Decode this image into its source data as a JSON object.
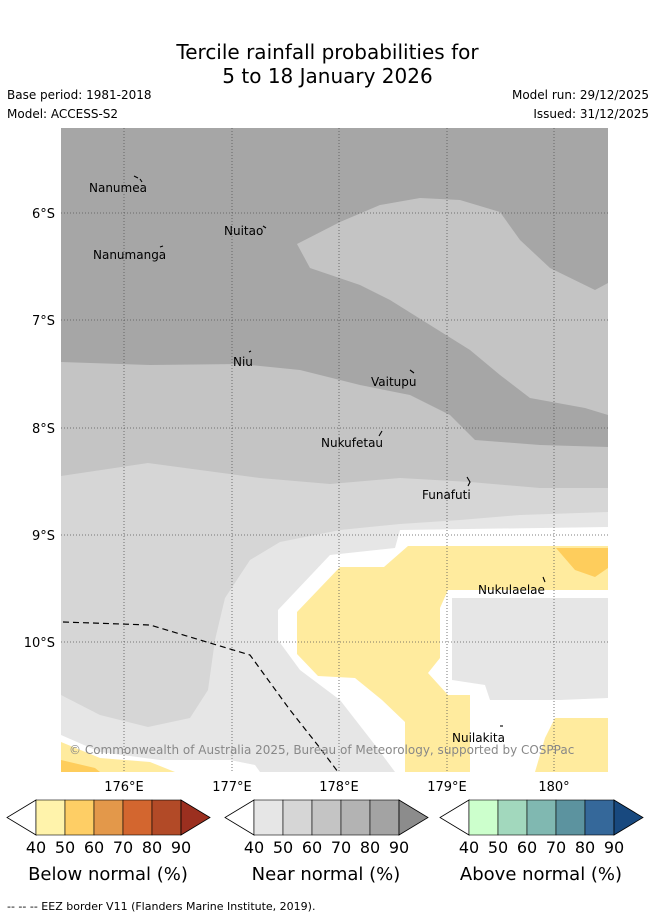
{
  "header": {
    "title_line1": "Tercile rainfall probabilities for",
    "title_line2": "5 to 18 January 2026",
    "base_period": "Base period: 1981-2018",
    "model": "Model: ACCESS-S2",
    "model_run": "Model run: 29/12/2025",
    "issued": "Issued: 31/12/2025"
  },
  "map": {
    "lat_ticks": [
      "6°S",
      "7°S",
      "8°S",
      "9°S",
      "10°S"
    ],
    "lon_ticks": [
      "176°E",
      "177°E",
      "178°E",
      "179°E",
      "180°"
    ],
    "places": [
      {
        "name": "Nanumea"
      },
      {
        "name": "Nuitao"
      },
      {
        "name": "Nanumanga"
      },
      {
        "name": "Niu"
      },
      {
        "name": "Vaitupu"
      },
      {
        "name": "Nukufetau"
      },
      {
        "name": "Funafuti"
      },
      {
        "name": "Nukulaelae"
      },
      {
        "name": "Nuilakita"
      }
    ],
    "copyright": "© Commonwealth of Australia 2025, Bureau of Meteorology, supported by COSPPac",
    "colors": {
      "near_90": "#a6a6a6",
      "near_70": "#c4c4c4",
      "near_60": "#d6d6d6",
      "near_50": "#e6e6e6",
      "below_50": "#ffeb9e",
      "below_60": "#fecd5c",
      "white": "#ffffff"
    }
  },
  "colorbars": [
    {
      "title": "Below normal (%)",
      "ticks": [
        "40",
        "50",
        "60",
        "70",
        "80",
        "90"
      ],
      "colors": [
        "#fff3ab",
        "#fece65",
        "#e3984a",
        "#d3662f",
        "#b24a27",
        "#9b2f1f"
      ]
    },
    {
      "title": "Near normal (%)",
      "ticks": [
        "40",
        "50",
        "60",
        "70",
        "80",
        "90"
      ],
      "colors": [
        "#e6e6e6",
        "#d6d6d6",
        "#c4c4c4",
        "#b3b3b3",
        "#a3a3a3",
        "#8c8c8c"
      ]
    },
    {
      "title": "Above normal (%)",
      "ticks": [
        "40",
        "50",
        "60",
        "70",
        "80",
        "90"
      ],
      "colors": [
        "#ccffcc",
        "#a2d8bd",
        "#80b8b1",
        "#5c939f",
        "#35689a",
        "#18497f"
      ]
    }
  ],
  "eez_note": "--  --  -- EEZ border V11 (Flanders Marine Institute, 2019)."
}
